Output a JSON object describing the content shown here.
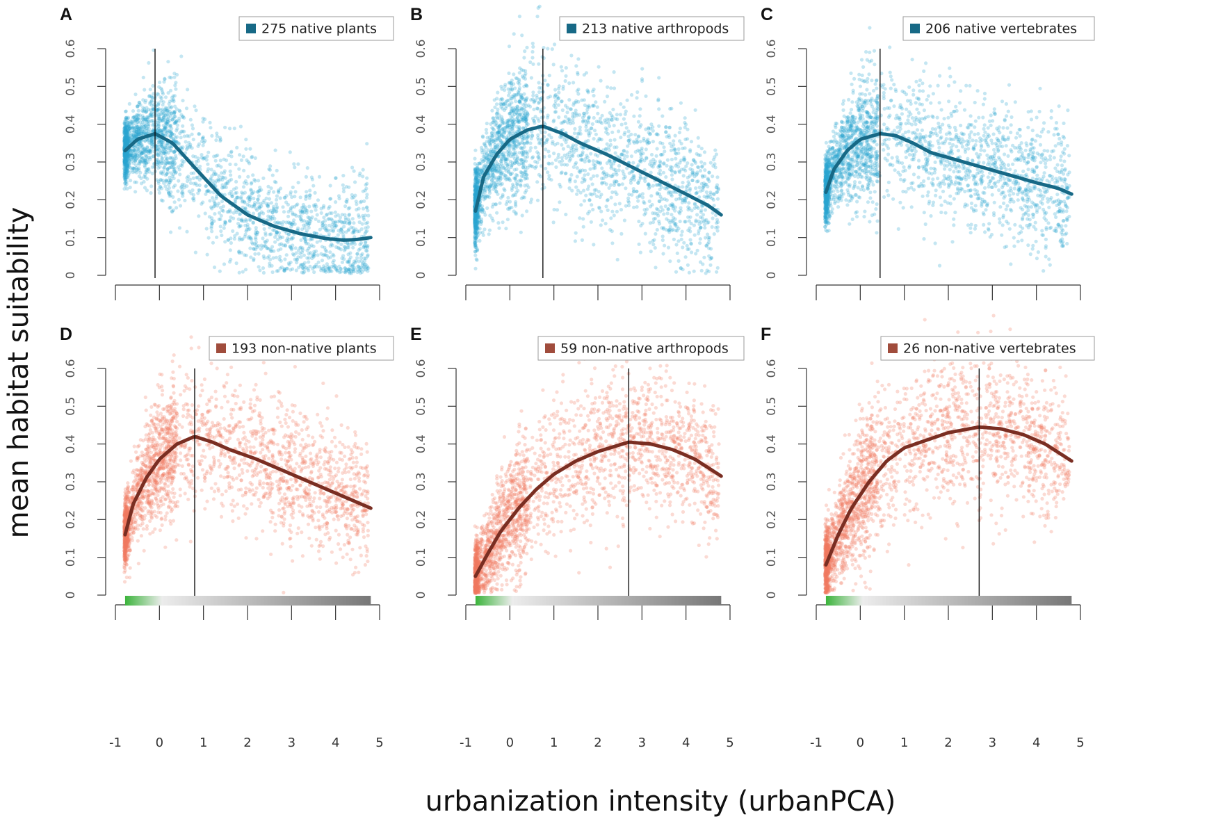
{
  "figure": {
    "ylabel": "mean habitat suitability",
    "xlabel": "urbanization intensity (urbanPCA)"
  },
  "colors": {
    "native_point": "#2aa4d1",
    "native_curve": "#176986",
    "native_legend": "#176986",
    "nonnative_point": "#f07a62",
    "nonnative_curve": "#7a2e22",
    "nonnative_legend": "#a04c3c",
    "gradient_green": "#3cb43c",
    "gradient_light": "#ececec",
    "gradient_dark": "#777777"
  },
  "chart_data": [
    {
      "type": "scatter",
      "panel": "A",
      "legend": "275 native plants",
      "group": "native",
      "xlim": [
        -1,
        5
      ],
      "ylim": [
        0,
        0.6
      ],
      "peak_x": -0.1,
      "x_ticks": [
        "-1",
        "0",
        "1",
        "2",
        "3",
        "4",
        "5"
      ],
      "y_ticks": [
        "0",
        "0.1",
        "0.2",
        "0.3",
        "0.4",
        "0.5",
        "0.6"
      ],
      "smooth_curve": {
        "x": [
          -0.78,
          -0.5,
          -0.1,
          0.3,
          0.8,
          1.4,
          2.0,
          2.6,
          3.2,
          3.8,
          4.2,
          4.5,
          4.8
        ],
        "y": [
          0.33,
          0.36,
          0.375,
          0.35,
          0.285,
          0.21,
          0.16,
          0.13,
          0.11,
          0.097,
          0.093,
          0.095,
          0.1
        ]
      },
      "spread": 0.08
    },
    {
      "type": "scatter",
      "panel": "B",
      "legend": "213 native arthropods",
      "group": "native",
      "xlim": [
        -1,
        5
      ],
      "ylim": [
        0,
        0.6
      ],
      "peak_x": 0.75,
      "x_ticks": [
        "-1",
        "0",
        "1",
        "2",
        "3",
        "4",
        "5"
      ],
      "y_ticks": [
        "0",
        "0.1",
        "0.2",
        "0.3",
        "0.4",
        "0.5",
        "0.6"
      ],
      "smooth_curve": {
        "x": [
          -0.78,
          -0.6,
          -0.3,
          0.0,
          0.4,
          0.75,
          1.2,
          1.6,
          2.2,
          2.8,
          3.4,
          4.0,
          4.5,
          4.8
        ],
        "y": [
          0.17,
          0.26,
          0.32,
          0.36,
          0.385,
          0.395,
          0.375,
          0.35,
          0.32,
          0.285,
          0.25,
          0.215,
          0.185,
          0.16
        ]
      },
      "spread": 0.1
    },
    {
      "type": "scatter",
      "panel": "C",
      "legend": "206 native vertebrates",
      "group": "native",
      "xlim": [
        -1,
        5
      ],
      "ylim": [
        0,
        0.6
      ],
      "peak_x": 0.45,
      "x_ticks": [
        "-1",
        "0",
        "1",
        "2",
        "3",
        "4",
        "5"
      ],
      "y_ticks": [
        "0",
        "0.1",
        "0.2",
        "0.3",
        "0.4",
        "0.5",
        "0.6"
      ],
      "smooth_curve": {
        "x": [
          -0.78,
          -0.6,
          -0.3,
          0.0,
          0.45,
          0.8,
          1.2,
          1.6,
          2.2,
          2.8,
          3.4,
          4.0,
          4.5,
          4.8
        ],
        "y": [
          0.22,
          0.28,
          0.33,
          0.36,
          0.375,
          0.37,
          0.35,
          0.325,
          0.305,
          0.285,
          0.265,
          0.245,
          0.23,
          0.215
        ]
      },
      "spread": 0.09
    },
    {
      "type": "scatter",
      "panel": "D",
      "legend": "193 non-native plants",
      "group": "nonnative",
      "xlim": [
        -1,
        5
      ],
      "ylim": [
        0,
        0.6
      ],
      "peak_x": 0.8,
      "x_ticks": [
        "-1",
        "0",
        "1",
        "2",
        "3",
        "4",
        "5"
      ],
      "y_ticks": [
        "0",
        "0.1",
        "0.2",
        "0.3",
        "0.4",
        "0.5",
        "0.6"
      ],
      "smooth_curve": {
        "x": [
          -0.78,
          -0.6,
          -0.3,
          0.0,
          0.4,
          0.8,
          1.2,
          1.6,
          2.2,
          2.8,
          3.4,
          4.0,
          4.5,
          4.8
        ],
        "y": [
          0.16,
          0.24,
          0.31,
          0.36,
          0.4,
          0.42,
          0.405,
          0.385,
          0.36,
          0.33,
          0.3,
          0.27,
          0.245,
          0.23
        ]
      },
      "spread": 0.09
    },
    {
      "type": "scatter",
      "panel": "E",
      "legend": "59 non-native arthropods",
      "group": "nonnative",
      "xlim": [
        -1,
        5
      ],
      "ylim": [
        0,
        0.6
      ],
      "peak_x": 2.7,
      "x_ticks": [
        "-1",
        "0",
        "1",
        "2",
        "3",
        "4",
        "5"
      ],
      "y_ticks": [
        "0",
        "0.1",
        "0.2",
        "0.3",
        "0.4",
        "0.5",
        "0.6"
      ],
      "smooth_curve": {
        "x": [
          -0.78,
          -0.5,
          -0.2,
          0.2,
          0.6,
          1.0,
          1.5,
          2.0,
          2.7,
          3.2,
          3.7,
          4.2,
          4.8
        ],
        "y": [
          0.05,
          0.11,
          0.17,
          0.23,
          0.28,
          0.32,
          0.355,
          0.38,
          0.405,
          0.4,
          0.385,
          0.36,
          0.315
        ]
      },
      "spread": 0.09
    },
    {
      "type": "scatter",
      "panel": "F",
      "legend": "26 non-native vertebrates",
      "group": "nonnative",
      "xlim": [
        -1,
        5
      ],
      "ylim": [
        0,
        0.6
      ],
      "peak_x": 2.7,
      "x_ticks": [
        "-1",
        "0",
        "1",
        "2",
        "3",
        "4",
        "5"
      ],
      "y_ticks": [
        "0",
        "0.1",
        "0.2",
        "0.3",
        "0.4",
        "0.5",
        "0.6"
      ],
      "smooth_curve": {
        "x": [
          -0.78,
          -0.5,
          -0.2,
          0.2,
          0.6,
          1.0,
          1.5,
          2.0,
          2.7,
          3.2,
          3.7,
          4.2,
          4.8
        ],
        "y": [
          0.08,
          0.16,
          0.23,
          0.3,
          0.355,
          0.39,
          0.41,
          0.43,
          0.445,
          0.44,
          0.425,
          0.4,
          0.355
        ]
      },
      "spread": 0.1
    }
  ]
}
